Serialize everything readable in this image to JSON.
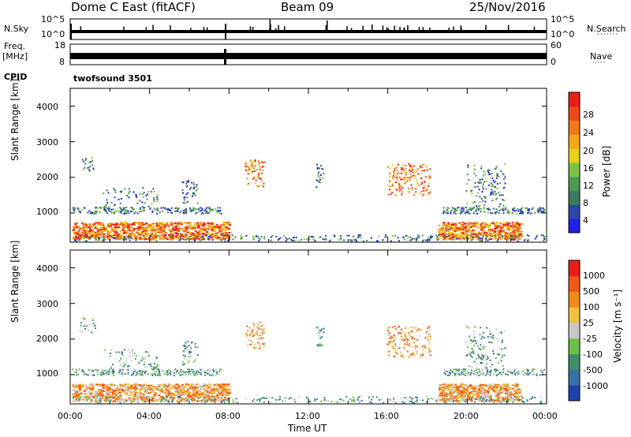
{
  "header": {
    "station": "Dome C East (fitACF)",
    "beam": "Beam 09",
    "date": "25/Nov/2016"
  },
  "top_panels": {
    "nsky_label": "N.Sky",
    "nsky_ticks": [
      "10^5",
      "10^0"
    ],
    "nsearch_label": "N.Search",
    "nsearch_ticks": [
      "10^5",
      "10^0"
    ],
    "freq_label_1": "Freq.",
    "freq_label_2": "[MHz]",
    "freq_ticks": [
      "18",
      "8"
    ],
    "nave_label": "Nave",
    "nave_ticks": [
      "60",
      "0"
    ],
    "cpid_label": "CPID",
    "cpid_value": "twofsound 3501"
  },
  "chart_data": [
    {
      "type": "heatmap",
      "name": "power",
      "ylabel": "Slant Range [km]",
      "ylim": [
        180,
        4500
      ],
      "y_ticks": [
        "1000",
        "2000",
        "3000",
        "4000"
      ],
      "x_ticks": [
        "00:00",
        "04:00",
        "08:00",
        "12:00",
        "16:00",
        "20:00",
        "00:00"
      ],
      "colorbar_label": "Power [dB]",
      "colorbar_ticks": [
        "28",
        "24",
        "20",
        "16",
        "12",
        "8",
        "4"
      ],
      "colors": [
        "#2020e6",
        "#2d48a8",
        "#3a7a62",
        "#4e9a54",
        "#7cc241",
        "#e8d01a",
        "#f5a619",
        "#f07818",
        "#ec4a18",
        "#e81e18"
      ]
    },
    {
      "type": "heatmap",
      "name": "velocity",
      "ylabel": "Slant Range [km]",
      "ylim": [
        180,
        4500
      ],
      "y_ticks": [
        "1000",
        "2000",
        "3000",
        "4000"
      ],
      "x_ticks": [
        "00:00",
        "04:00",
        "08:00",
        "12:00",
        "16:00",
        "20:00",
        "00:00"
      ],
      "xlabel": "Time UT",
      "colorbar_label": "Velocity [m s⁻¹]",
      "colorbar_ticks": [
        "1000",
        "500",
        "100",
        "25",
        "-25",
        "-100",
        "-500",
        "-1000"
      ],
      "colors": [
        "#2040b0",
        "#3b6fa8",
        "#3f8f6a",
        "#6cc04a",
        "#c8c8c8",
        "#f0c040",
        "#f28a18",
        "#ee5a18",
        "#e81e18"
      ]
    }
  ]
}
